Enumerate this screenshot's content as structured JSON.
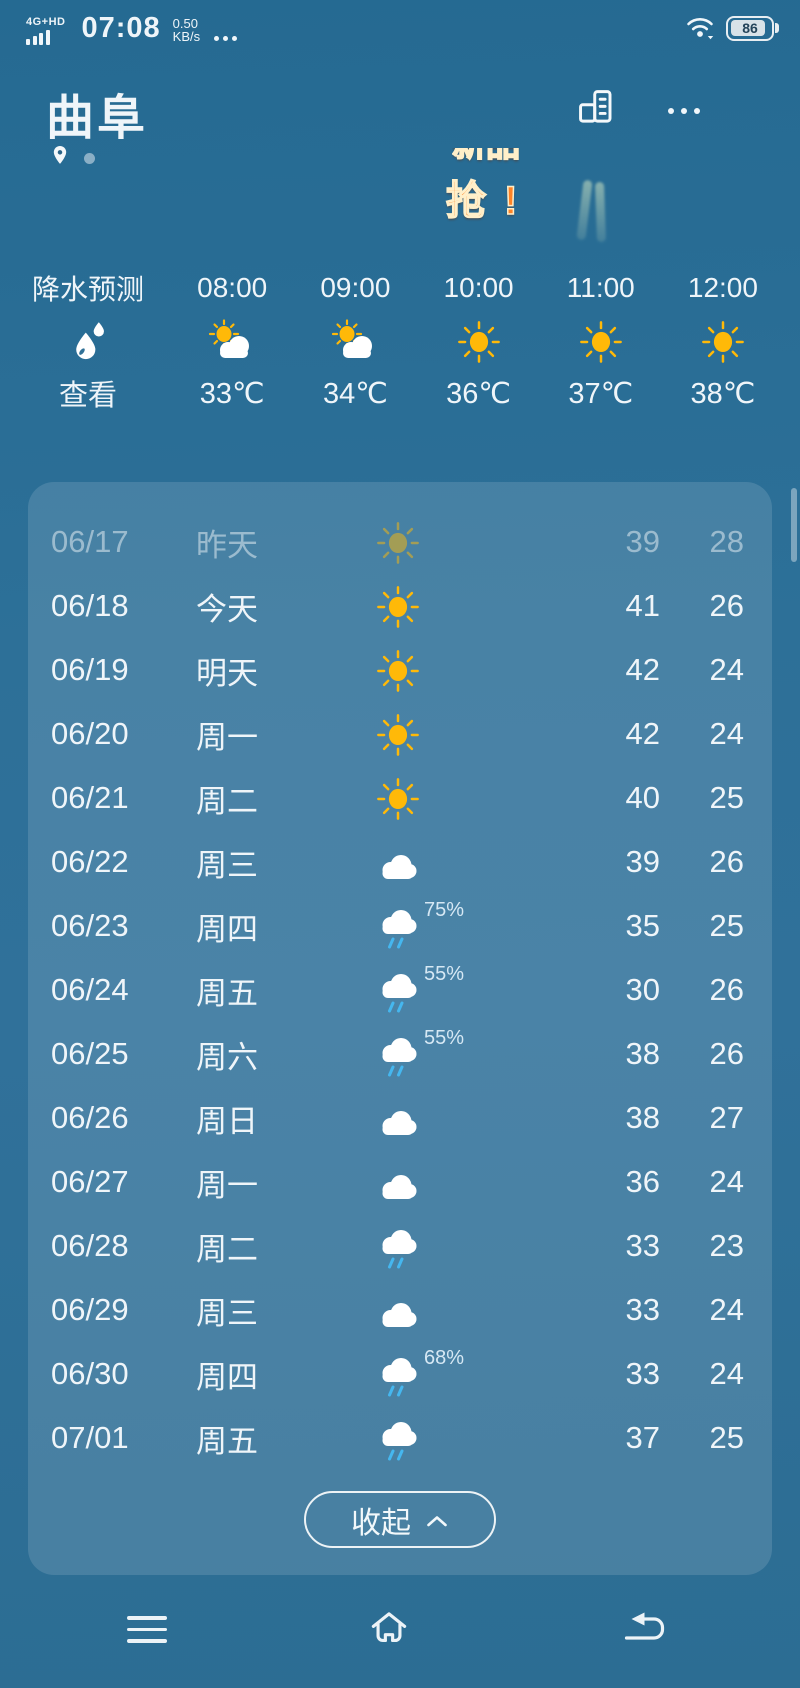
{
  "status_bar": {
    "network": "4G+HD",
    "time": "07:08",
    "speed_value": "0.50",
    "speed_unit": "KB/s",
    "battery_percent": "86"
  },
  "header": {
    "city": "曲阜"
  },
  "promo": {
    "clipped_text": "新品",
    "main_text": "抢",
    "bang": "!"
  },
  "hourly": {
    "precip": {
      "title": "降水预测",
      "action": "查看"
    },
    "items": [
      {
        "time": "08:00",
        "icon": "partly",
        "temp": "33℃"
      },
      {
        "time": "09:00",
        "icon": "partly",
        "temp": "34℃"
      },
      {
        "time": "10:00",
        "icon": "sunny",
        "temp": "36℃"
      },
      {
        "time": "11:00",
        "icon": "sunny",
        "temp": "37℃"
      },
      {
        "time": "12:00",
        "icon": "sunny",
        "temp": "38℃"
      }
    ]
  },
  "daily": [
    {
      "date": "06/17",
      "day": "昨天",
      "icon": "sunny",
      "high": "39",
      "low": "28",
      "dimmed": true
    },
    {
      "date": "06/18",
      "day": "今天",
      "icon": "sunny",
      "high": "41",
      "low": "26"
    },
    {
      "date": "06/19",
      "day": "明天",
      "icon": "sunny",
      "high": "42",
      "low": "24"
    },
    {
      "date": "06/20",
      "day": "周一",
      "icon": "sunny",
      "high": "42",
      "low": "24"
    },
    {
      "date": "06/21",
      "day": "周二",
      "icon": "sunny",
      "high": "40",
      "low": "25"
    },
    {
      "date": "06/22",
      "day": "周三",
      "icon": "cloudy",
      "high": "39",
      "low": "26"
    },
    {
      "date": "06/23",
      "day": "周四",
      "icon": "rain",
      "pop": "75%",
      "high": "35",
      "low": "25"
    },
    {
      "date": "06/24",
      "day": "周五",
      "icon": "rain",
      "pop": "55%",
      "high": "30",
      "low": "26"
    },
    {
      "date": "06/25",
      "day": "周六",
      "icon": "rain",
      "pop": "55%",
      "high": "38",
      "low": "26"
    },
    {
      "date": "06/26",
      "day": "周日",
      "icon": "cloudy",
      "high": "38",
      "low": "27"
    },
    {
      "date": "06/27",
      "day": "周一",
      "icon": "cloudy",
      "high": "36",
      "low": "24"
    },
    {
      "date": "06/28",
      "day": "周二",
      "icon": "rain",
      "high": "33",
      "low": "23"
    },
    {
      "date": "06/29",
      "day": "周三",
      "icon": "cloudy",
      "high": "33",
      "low": "24"
    },
    {
      "date": "06/30",
      "day": "周四",
      "icon": "rain",
      "pop": "68%",
      "high": "33",
      "low": "24"
    },
    {
      "date": "07/01",
      "day": "周五",
      "icon": "rain",
      "high": "37",
      "low": "25"
    }
  ],
  "collapse_button": {
    "label": "收起"
  },
  "colors": {
    "sun": "#FFB908",
    "rain_drop": "#45B7EF",
    "background_top": "#256a92",
    "background_bottom": "#2c6d93",
    "panel_overlay": "rgba(255,255,255,0.13)"
  }
}
